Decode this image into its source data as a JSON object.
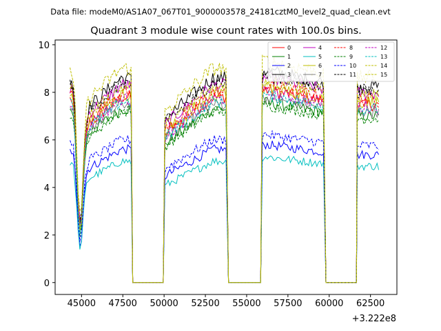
{
  "figure": {
    "suptitle": "Data file: modeM0/AS1A07_067T01_9000003578_24181cztM0_level2_quad_clean.evt"
  },
  "chart_data": {
    "type": "line",
    "title": "Quadrant 3 module wise count rates with 100.0s bins.",
    "xlabel": "",
    "ylabel": "",
    "x_offset_label": "+3.222e8",
    "xlim": [
      43400,
      64100
    ],
    "ylim": [
      -0.5,
      10.2
    ],
    "xticks": [
      45000,
      47500,
      50000,
      52500,
      55000,
      57500,
      60000,
      62500
    ],
    "xtick_labels": [
      "45000",
      "47500",
      "50000",
      "52500",
      "55000",
      "57500",
      "60000",
      "62500"
    ],
    "yticks": [
      0,
      2,
      4,
      6,
      8,
      10
    ],
    "ytick_labels": [
      "0",
      "2",
      "4",
      "6",
      "8",
      "10"
    ],
    "segments": [
      {
        "start": 44300,
        "end": 48000,
        "shape": "dip",
        "dip_at": 44900,
        "dip_depth": 0.3
      },
      {
        "start": 50050,
        "end": 53800,
        "shape": "rise"
      },
      {
        "start": 55950,
        "end": 59700,
        "shape": "fall"
      },
      {
        "start": 61700,
        "end": 63000,
        "shape": "flat"
      }
    ],
    "gaps": [
      {
        "start": 48100,
        "end": 49950,
        "value": 0
      },
      {
        "start": 53900,
        "end": 55850,
        "value": 0
      },
      {
        "start": 59800,
        "end": 61650,
        "value": 0
      }
    ],
    "bin_size_s": 100,
    "legend_position": "top-right",
    "series": [
      {
        "name": "0",
        "color": "#ff0000",
        "dash": "solid",
        "level": 7.8
      },
      {
        "name": "1",
        "color": "#008000",
        "dash": "solid",
        "level": 7.3
      },
      {
        "name": "2",
        "color": "#0000ff",
        "dash": "solid",
        "level": 5.6
      },
      {
        "name": "3",
        "color": "#000000",
        "dash": "solid",
        "level": 8.6
      },
      {
        "name": "4",
        "color": "#bf00bf",
        "dash": "solid",
        "level": 8.3
      },
      {
        "name": "5",
        "color": "#00bfbf",
        "dash": "solid",
        "level": 5.1
      },
      {
        "name": "6",
        "color": "#bfbf00",
        "dash": "solid",
        "level": 7.9
      },
      {
        "name": "7",
        "color": "#808080",
        "dash": "solid",
        "level": 7.5
      },
      {
        "name": "8",
        "color": "#ff0000",
        "dash": "dashed",
        "level": 8.0
      },
      {
        "name": "9",
        "color": "#008000",
        "dash": "dashed",
        "level": 7.2
      },
      {
        "name": "10",
        "color": "#0000ff",
        "dash": "dashed",
        "level": 6.0
      },
      {
        "name": "11",
        "color": "#000000",
        "dash": "dashed",
        "level": 8.4
      },
      {
        "name": "12",
        "color": "#bf00bf",
        "dash": "dashed",
        "level": 7.7
      },
      {
        "name": "13",
        "color": "#00bfbf",
        "dash": "dashed",
        "level": 7.6
      },
      {
        "name": "14",
        "color": "#bfbf00",
        "dash": "dashed",
        "level": 9.0
      },
      {
        "name": "15",
        "color": "#bfbf00",
        "dash": "dashed",
        "level": 8.2
      }
    ]
  }
}
